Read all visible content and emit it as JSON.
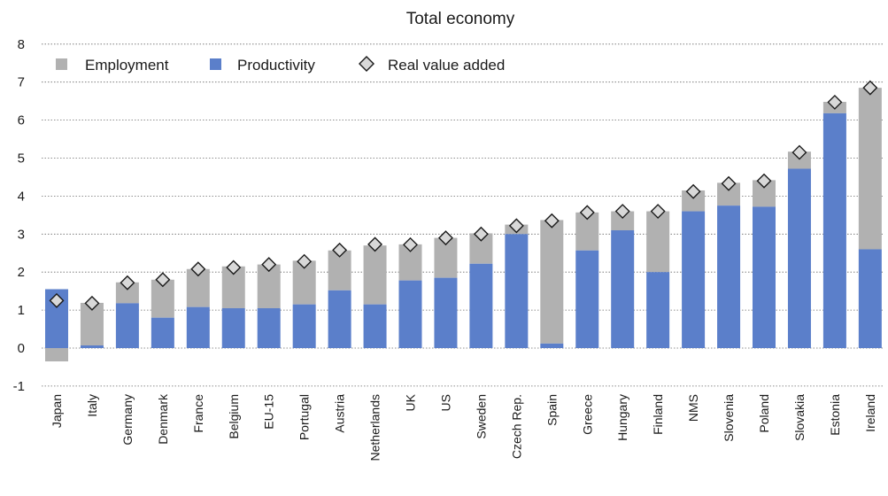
{
  "chart_data": {
    "type": "bar",
    "title": "Total economy",
    "xlabel": "",
    "ylabel": "",
    "ylim": [
      -1,
      8
    ],
    "yticks": [
      -1,
      0,
      1,
      2,
      3,
      4,
      5,
      6,
      7,
      8
    ],
    "grid": true,
    "legend_position": "top-left",
    "categories": [
      "Japan",
      "Italy",
      "Germany",
      "Denmark",
      "France",
      "Belgium",
      "EU-15",
      "Portugal",
      "Austria",
      "Netherlands",
      "UK",
      "US",
      "Sweden",
      "Czech Rep.",
      "Spain",
      "Greece",
      "Hungary",
      "Finland",
      "NMS",
      "Slovenia",
      "Poland",
      "Slovakia",
      "Estonia",
      "Ireland"
    ],
    "series": [
      {
        "name": "Employment",
        "kind": "stacked-bar",
        "color": "#b1b1b1",
        "values": [
          -0.35,
          1.12,
          0.55,
          1.0,
          1.0,
          1.1,
          1.15,
          1.15,
          1.05,
          1.55,
          0.95,
          1.05,
          0.8,
          0.25,
          3.25,
          1.0,
          0.5,
          1.6,
          0.55,
          0.6,
          0.7,
          0.45,
          0.3,
          4.25
        ]
      },
      {
        "name": "Productivity",
        "kind": "stacked-bar",
        "color": "#5b7fca",
        "values": [
          1.55,
          0.07,
          1.18,
          0.8,
          1.08,
          1.05,
          1.05,
          1.15,
          1.52,
          1.15,
          1.78,
          1.85,
          2.22,
          3.0,
          0.12,
          2.57,
          3.1,
          2.0,
          3.6,
          3.75,
          3.72,
          4.72,
          6.18,
          2.6
        ]
      },
      {
        "name": "Real value added",
        "kind": "marker",
        "color": "#d8d8d8",
        "values": [
          1.25,
          1.18,
          1.72,
          1.8,
          2.08,
          2.12,
          2.2,
          2.28,
          2.58,
          2.73,
          2.72,
          2.9,
          3.0,
          3.22,
          3.35,
          3.57,
          3.6,
          3.6,
          4.12,
          4.33,
          4.4,
          5.15,
          6.47,
          6.85
        ]
      }
    ]
  }
}
